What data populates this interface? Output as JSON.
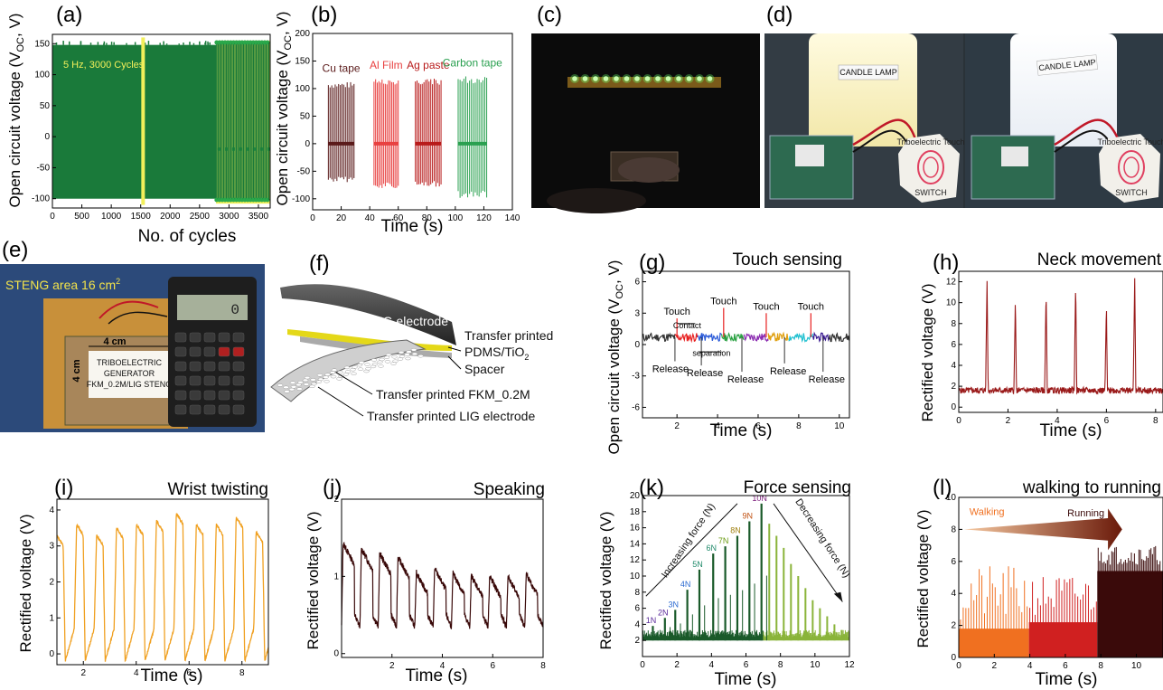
{
  "panels": {
    "a": {
      "label": "(a)"
    },
    "b": {
      "label": "(b)"
    },
    "c": {
      "label": "(c)"
    },
    "d": {
      "label": "(d)",
      "lamp_text_1": "CANDLE LAMP",
      "lamp_text_2": "CANDLE LAMP",
      "switch_text_1": "SWITCH",
      "switch_text_2": "SWITCH",
      "touch_text_1": "Triboelectric Touch",
      "touch_text_2": "Triboelectric Touch"
    },
    "e": {
      "label": "(e)",
      "area": "STENG area 16 cm",
      "area_sup": "2",
      "dim_h": "4 cm",
      "dim_v": "4 cm",
      "card_1": "TRIBOELECTRIC",
      "card_2": "GENERATOR",
      "card_3": "FKM_0.2M/LIG STENG",
      "display": "0"
    },
    "f": {
      "label": "(f)",
      "lig": "LIG electrode",
      "l1": "Transfer printed",
      "l2": "PDMS/TiO",
      "l2_sub": "2",
      "l3": "Spacer",
      "l4": "Transfer printed FKM_0.2M",
      "l5": "Transfer printed LIG electrode"
    }
  },
  "chart_data": [
    {
      "id": "a",
      "type": "line",
      "title": "",
      "xlabel": "No. of cycles",
      "ylabel": "Open circuit voltage (V",
      "ylabel_sub": "OC",
      "ylabel_end": ", V)",
      "xlim": [
        0,
        3700
      ],
      "ylim": [
        -115,
        165
      ],
      "xticks": [
        "0",
        "500",
        "1000",
        "1500",
        "2000",
        "2500",
        "3000",
        "3500"
      ],
      "yticks": [
        "-100",
        "-50",
        "0",
        "50",
        "100",
        "150"
      ],
      "annotation": "5 Hz, 3000 Cycles",
      "colors": {
        "fill": "#1a7a3a",
        "highlight": "#f2ef5a",
        "marker": "#2aa84a"
      }
    },
    {
      "id": "b",
      "type": "line",
      "title": "",
      "xlabel": "Time (s)",
      "ylabel": "Open circuit voltage (V",
      "ylabel_sub": "OC",
      "ylabel_end": ", V)",
      "xlim": [
        0,
        140
      ],
      "ylim": [
        -120,
        200
      ],
      "xticks": [
        "0",
        "20",
        "40",
        "60",
        "80",
        "100",
        "120",
        "140"
      ],
      "yticks": [
        "-100",
        "-50",
        "0",
        "50",
        "100",
        "150",
        "200"
      ],
      "series": [
        {
          "name": "Cu tape",
          "x_range": [
            11,
            29
          ],
          "peak": 112,
          "trough": -70,
          "color": "#5a1a1a"
        },
        {
          "name": "Al Film",
          "x_range": [
            43,
            60
          ],
          "peak": 118,
          "trough": -83,
          "color": "#e84040"
        },
        {
          "name": "Ag paste",
          "x_range": [
            72,
            90
          ],
          "peak": 118,
          "trough": -78,
          "color": "#b81a1a"
        },
        {
          "name": "Carbon tape",
          "x_range": [
            102,
            122
          ],
          "peak": 122,
          "trough": -100,
          "color": "#2aa050"
        }
      ]
    },
    {
      "id": "g",
      "type": "line",
      "title": "Touch sensing",
      "xlabel": "Time (s)",
      "ylabel": "Open circuit voltage (V",
      "ylabel_sub": "OC",
      "ylabel_end": ", V)",
      "xlim": [
        0.3,
        10.5
      ],
      "ylim": [
        -7,
        7
      ],
      "xticks": [
        "2",
        "4",
        "6",
        "8",
        "10"
      ],
      "yticks": [
        "-6",
        "-3",
        "0",
        "3",
        "6"
      ],
      "segments": [
        {
          "x": [
            0.3,
            1.9
          ],
          "color": "#333333"
        },
        {
          "x": [
            1.9,
            3.0
          ],
          "color": "#e82020"
        },
        {
          "x": [
            3.0,
            4.2
          ],
          "color": "#2a5ad8"
        },
        {
          "x": [
            4.2,
            5.3
          ],
          "color": "#28a040"
        },
        {
          "x": [
            5.3,
            6.5
          ],
          "color": "#8a2ab0"
        },
        {
          "x": [
            6.5,
            7.5
          ],
          "color": "#e0a010"
        },
        {
          "x": [
            7.5,
            8.7
          ],
          "color": "#20c0d0"
        },
        {
          "x": [
            8.7,
            9.5
          ],
          "color": "#3a1a90"
        },
        {
          "x": [
            9.5,
            10.5
          ],
          "color": "#333333"
        }
      ],
      "touches": [
        {
          "x": 2.0,
          "peak": 2.5,
          "label": "Touch"
        },
        {
          "x": 4.3,
          "peak": 3.5,
          "label": "Touch"
        },
        {
          "x": 6.4,
          "peak": 3.0,
          "label": "Touch"
        },
        {
          "x": 8.6,
          "peak": 3.0,
          "label": "Touch"
        }
      ],
      "releases": [
        {
          "x": 1.9,
          "trough": -1.6
        },
        {
          "x": 3.2,
          "trough": -2.0
        },
        {
          "x": 5.2,
          "trough": -2.6
        },
        {
          "x": 7.3,
          "trough": -1.8
        },
        {
          "x": 9.2,
          "trough": -2.6
        }
      ],
      "release_label": "Release",
      "contact_label": "Contact",
      "separation_label": "separation"
    },
    {
      "id": "h",
      "type": "line",
      "title": "Neck movement",
      "xlabel": "Time (s)",
      "ylabel": "Rectified voltage (V)",
      "xlim": [
        0,
        8.3
      ],
      "ylim": [
        -0.5,
        13
      ],
      "xticks": [
        "0",
        "2",
        "4",
        "6",
        "8"
      ],
      "yticks": [
        "0",
        "2",
        "4",
        "6",
        "8",
        "10",
        "12"
      ],
      "peaks": [
        {
          "x": 1.15,
          "y": 12.4
        },
        {
          "x": 2.3,
          "y": 10.3
        },
        {
          "x": 3.55,
          "y": 11.0
        },
        {
          "x": 4.75,
          "y": 11.8
        },
        {
          "x": 6.0,
          "y": 9.7
        },
        {
          "x": 7.15,
          "y": 12.6
        }
      ],
      "baseline": 1.6,
      "color": "#9a1a1a"
    },
    {
      "id": "i",
      "type": "line",
      "title": "Wrist twisting",
      "xlabel": "Time (s)",
      "ylabel": "Rectified voltage (V)",
      "xlim": [
        1,
        9
      ],
      "ylim": [
        -0.3,
        4.3
      ],
      "xticks": [
        "2",
        "4",
        "6",
        "8"
      ],
      "yticks": [
        "0",
        "1",
        "2",
        "3",
        "4"
      ],
      "peaks": [
        3.3,
        3.6,
        3.3,
        3.5,
        3.6,
        3.7,
        3.9,
        3.6,
        3.6,
        3.8,
        3.4
      ],
      "color": "#f0a020"
    },
    {
      "id": "j",
      "type": "line",
      "title": "Speaking",
      "xlabel": "Time (s)",
      "ylabel": "Rectified voltage (V)",
      "xlim": [
        0,
        8
      ],
      "ylim": [
        -0.05,
        2.0
      ],
      "xticks": [
        "2",
        "4",
        "6",
        "8"
      ],
      "yticks": [
        "0",
        "1",
        "2"
      ],
      "peaks": [
        1.43,
        1.36,
        1.3,
        1.25,
        1.05,
        1.1,
        1.04,
        1.01,
        1.0,
        1.0,
        1.03
      ],
      "color": "#3a0a0a"
    },
    {
      "id": "k",
      "type": "bar",
      "title": "Force sensing",
      "xlabel": "Time (s)",
      "ylabel": "Rectified voltage (V)",
      "xlim": [
        0,
        12
      ],
      "ylim": [
        0,
        20
      ],
      "xticks": [
        "0",
        "2",
        "4",
        "6",
        "8",
        "10",
        "12"
      ],
      "yticks": [
        "2",
        "4",
        "6",
        "8",
        "10",
        "12",
        "14",
        "16",
        "18",
        "20"
      ],
      "forces": [
        {
          "label": "1N",
          "x": 0.6,
          "y": 3.8,
          "color": "#5a2a9a"
        },
        {
          "label": "2N",
          "x": 1.3,
          "y": 4.8,
          "color": "#5a2a9a"
        },
        {
          "label": "3N",
          "x": 1.9,
          "y": 5.8,
          "color": "#2a6ad0"
        },
        {
          "label": "4N",
          "x": 2.6,
          "y": 8.3,
          "color": "#2a6ad0"
        },
        {
          "label": "5N",
          "x": 3.3,
          "y": 10.8,
          "color": "#208a6a"
        },
        {
          "label": "6N",
          "x": 4.1,
          "y": 12.8,
          "color": "#208a6a"
        },
        {
          "label": "7N",
          "x": 4.8,
          "y": 13.7,
          "color": "#6a9a10"
        },
        {
          "label": "8N",
          "x": 5.5,
          "y": 15.0,
          "color": "#a08010"
        },
        {
          "label": "9N",
          "x": 6.2,
          "y": 16.8,
          "color": "#c05010"
        },
        {
          "label": "10N",
          "x": 6.9,
          "y": 19.0,
          "color": "#7a1a7a"
        }
      ],
      "decreasing": [
        16.5,
        15.0,
        13.5,
        11.5,
        10.0,
        8.5,
        7.0,
        6.0,
        5.0,
        4.0,
        3.3
      ],
      "inc_label": "Increasing force (N)",
      "dec_label": "Decreasing force (N)",
      "colors": {
        "inc": "#1a5a2a",
        "dec": "#8ab43a"
      }
    },
    {
      "id": "l",
      "type": "line",
      "title": "walking to running",
      "xlabel": "Time (s)",
      "ylabel": "Rectified voltage (V)",
      "xlim": [
        0,
        11.5
      ],
      "ylim": [
        0,
        10
      ],
      "xticks": [
        "0",
        "2",
        "4",
        "6",
        "8",
        "10"
      ],
      "yticks": [
        "0",
        "2",
        "4",
        "6",
        "8",
        "10"
      ],
      "walk_label": "Walking",
      "run_label": "Running",
      "colors": {
        "walk": "#f07020",
        "mid": "#d02020",
        "run": "#3a0a0a"
      }
    }
  ]
}
